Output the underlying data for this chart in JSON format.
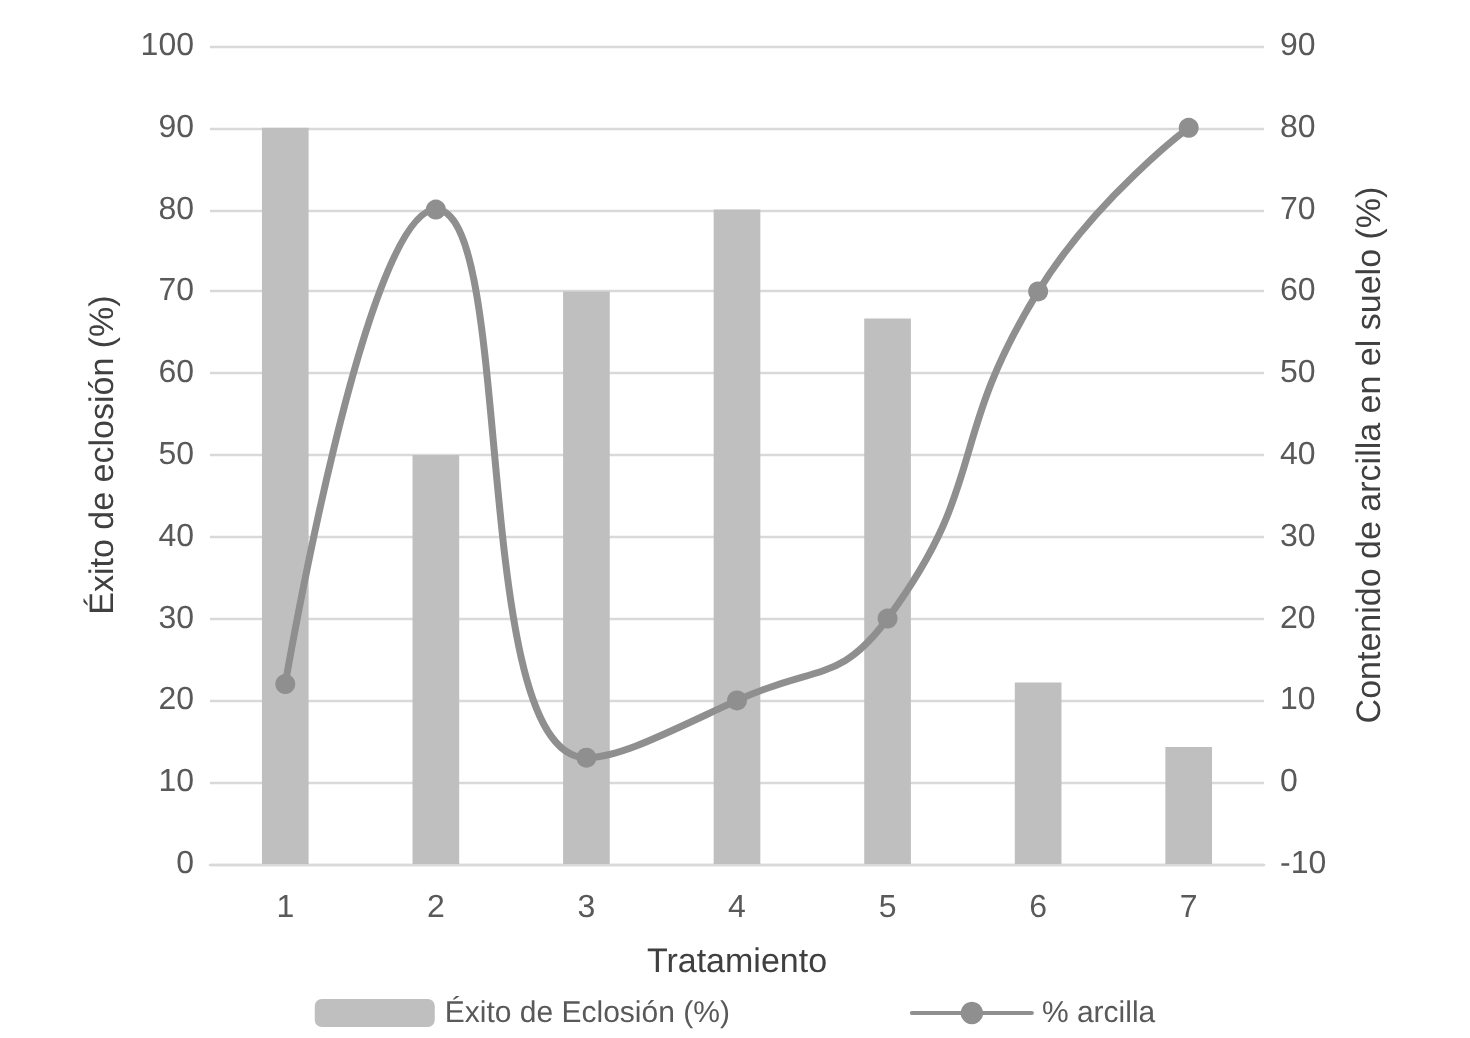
{
  "chart_data": {
    "type": "bar",
    "xlabel": "Tratamiento",
    "ylabel": "Éxito de eclosión (%)",
    "y2label": "Contenido de arcilla en el suelo (%)",
    "categories": [
      "1",
      "2",
      "3",
      "4",
      "5",
      "6",
      "7"
    ],
    "series": [
      {
        "name": "Éxito de Eclosión (%)",
        "color": "#bfbfbf",
        "values": [
          90,
          50,
          70,
          80,
          66.7,
          22.2,
          14.3
        ]
      },
      {
        "name": "% arcilla",
        "type": "line",
        "axis": "y2",
        "color": "#8f8f8f",
        "values": [
          12,
          70,
          3,
          10,
          20,
          60,
          80
        ]
      }
    ],
    "ylim": [
      0,
      100
    ],
    "yticks": [
      0,
      10,
      20,
      30,
      40,
      50,
      60,
      70,
      80,
      90,
      100
    ],
    "y2lim": [
      -10,
      90
    ],
    "y2ticks": [
      -10,
      0,
      10,
      20,
      30,
      40,
      50,
      60,
      70,
      80,
      90
    ],
    "grid": "y",
    "legend": "bottom",
    "marker": "circle",
    "line_style": "solid"
  }
}
